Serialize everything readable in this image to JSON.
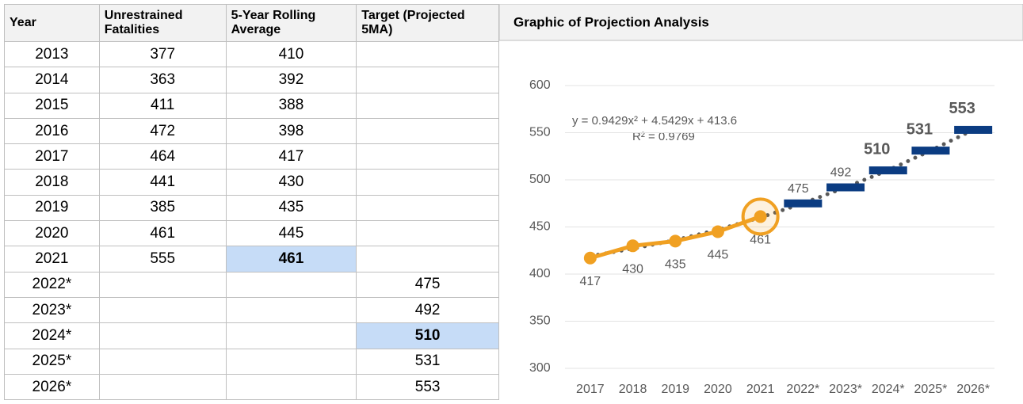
{
  "table": {
    "headers": [
      "Year",
      "Unrestrained Fatalities",
      "5-Year Rolling Average",
      "Target (Projected 5MA)"
    ],
    "rows": [
      [
        "2013",
        377,
        410,
        null
      ],
      [
        "2014",
        363,
        392,
        null
      ],
      [
        "2015",
        411,
        388,
        null
      ],
      [
        "2016",
        472,
        398,
        null
      ],
      [
        "2017",
        464,
        417,
        null
      ],
      [
        "2018",
        441,
        430,
        null
      ],
      [
        "2019",
        385,
        435,
        null
      ],
      [
        "2020",
        461,
        445,
        null
      ],
      [
        "2021",
        555,
        461,
        null
      ],
      [
        "2022*",
        null,
        null,
        475
      ],
      [
        "2023*",
        null,
        null,
        492
      ],
      [
        "2024*",
        null,
        null,
        510
      ],
      [
        "2025*",
        null,
        null,
        531
      ],
      [
        "2026*",
        null,
        null,
        553
      ]
    ]
  },
  "chart_data": {
    "type": "line",
    "title": "Graphic of Projection Analysis",
    "categories": [
      "2017",
      "2018",
      "2019",
      "2020",
      "2021",
      "2022*",
      "2023*",
      "2024*",
      "2025*",
      "2026*"
    ],
    "series": [
      {
        "name": "5-Year Rolling Average",
        "color": "#f0a022",
        "style": "line",
        "values": [
          417,
          430,
          435,
          445,
          461,
          null,
          null,
          null,
          null,
          null
        ]
      },
      {
        "name": "Target (Projected 5MA)",
        "color": "#0b3c82",
        "style": "dash",
        "values": [
          null,
          null,
          null,
          null,
          null,
          475,
          492,
          510,
          531,
          553
        ],
        "bold_labels": [
          false,
          false,
          false,
          false,
          false,
          false,
          false,
          true,
          true,
          true
        ]
      },
      {
        "color": "#595959",
        "style": "trend",
        "values": [
          419,
          427,
          436,
          447,
          460,
          475,
          492,
          510,
          531,
          553
        ]
      }
    ],
    "annotations": [
      "y = 0.9429x² + 4.5429x + 413.6",
      "R² = 0.9769"
    ],
    "ylim": [
      300,
      600
    ],
    "yticks": [
      300,
      350,
      400,
      450,
      500,
      550,
      600
    ],
    "grid": true
  }
}
